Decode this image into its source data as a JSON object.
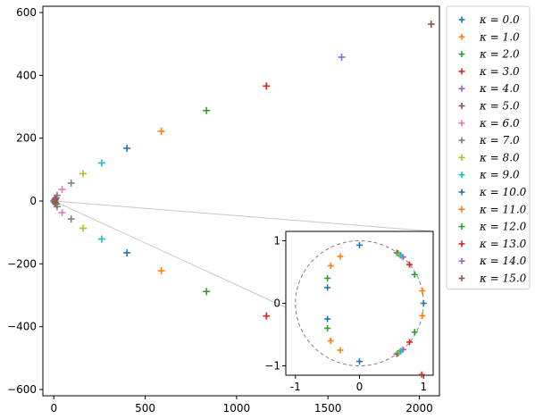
{
  "chart_data": {
    "type": "scatter",
    "marker": "plus",
    "main": {
      "xlim": [
        -60,
        2110
      ],
      "ylim": [
        -620,
        620
      ],
      "xticks": [
        0,
        500,
        1000,
        1500,
        2000
      ],
      "xtick_labels": [
        "0",
        "500",
        "1000",
        "1500",
        "2000"
      ],
      "yticks": [
        -600,
        -400,
        -200,
        0,
        200,
        400,
        600
      ],
      "ytick_labels": [
        "−600",
        "−400",
        "−200",
        "0",
        "200",
        "400",
        "600"
      ]
    },
    "inset": {
      "xlim": [
        -1.15,
        1.15
      ],
      "ylim": [
        -1.15,
        1.15
      ],
      "xticks": [
        -1,
        0,
        1
      ],
      "xtick_labels": [
        "-1",
        "0",
        "1"
      ],
      "yticks": [
        -1,
        0,
        1
      ],
      "ytick_labels": [
        "−1",
        "0",
        "1"
      ],
      "unit_circle": true
    },
    "legend": {
      "placement": "outside-right"
    },
    "series": [
      {
        "name": "κ = 0.0",
        "color": "#1f77b4",
        "points": [
          [
            0,
            0
          ]
        ],
        "inset_points": [
          [
            1.0,
            0.0
          ]
        ]
      },
      {
        "name": "κ = 1.0",
        "color": "#ff7f0e",
        "points": [
          [
            3,
            0
          ]
        ],
        "inset_points": [
          [
            0.98,
            0.2
          ],
          [
            0.98,
            -0.2
          ]
        ]
      },
      {
        "name": "κ = 2.0",
        "color": "#2ca02c",
        "points": [
          [
            5,
            3
          ],
          [
            5,
            -3
          ]
        ],
        "inset_points": [
          [
            0.86,
            0.46
          ],
          [
            0.86,
            -0.46
          ]
        ]
      },
      {
        "name": "κ = 3.0",
        "color": "#d62728",
        "points": [
          [
            7,
            5
          ],
          [
            7,
            -5
          ]
        ],
        "inset_points": [
          [
            0.78,
            0.62
          ],
          [
            0.78,
            -0.62
          ]
        ]
      },
      {
        "name": "κ = 4.0",
        "color": "#9467bd",
        "points": [
          [
            9,
            7
          ],
          [
            9,
            -7
          ]
        ],
        "inset_points": [
          [
            0.68,
            0.74
          ],
          [
            0.68,
            -0.74
          ]
        ]
      },
      {
        "name": "κ = 5.0",
        "color": "#8c564b",
        "points": [
          [
            12,
            10
          ],
          [
            12,
            -10
          ]
        ],
        "inset_points": [
          [
            0.6,
            0.8
          ],
          [
            0.6,
            -0.8
          ]
        ]
      },
      {
        "name": "κ = 6.0",
        "color": "#e377c2",
        "points": [
          [
            45,
            37
          ],
          [
            45,
            -37
          ]
        ],
        "inset_points": [
          [
            0.65,
            0.76
          ],
          [
            0.65,
            -0.76
          ]
        ]
      },
      {
        "name": "κ = 7.0",
        "color": "#7f7f7f",
        "points": [
          [
            95,
            57
          ],
          [
            95,
            -57
          ],
          [
            18,
            18
          ],
          [
            18,
            -18
          ]
        ],
        "inset_points": [
          [
            0.58,
            0.81
          ],
          [
            0.58,
            -0.81
          ]
        ]
      },
      {
        "name": "κ = 8.0",
        "color": "#bcbd22",
        "points": [
          [
            160,
            87
          ],
          [
            160,
            -87
          ]
        ],
        "inset_points": [
          [
            0.62,
            0.78
          ],
          [
            0.62,
            -0.78
          ]
        ]
      },
      {
        "name": "κ = 9.0",
        "color": "#17becf",
        "points": [
          [
            262,
            121
          ],
          [
            262,
            -121
          ]
        ],
        "inset_points": [
          [
            0.64,
            0.77
          ],
          [
            0.64,
            -0.77
          ]
        ]
      },
      {
        "name": "κ = 10.0",
        "color": "#1f77b4",
        "points": [
          [
            400,
            168
          ],
          [
            400,
            -165
          ]
        ],
        "inset_points": [
          [
            0.0,
            0.93
          ],
          [
            0.0,
            -0.93
          ],
          [
            -0.5,
            0.25
          ],
          [
            -0.5,
            -0.25
          ]
        ]
      },
      {
        "name": "κ = 11.0",
        "color": "#ff7f0e",
        "points": [
          [
            588,
            222
          ],
          [
            588,
            -222
          ]
        ],
        "inset_points": [
          [
            -0.3,
            0.75
          ],
          [
            -0.3,
            -0.75
          ],
          [
            -0.45,
            0.6
          ],
          [
            -0.45,
            -0.6
          ]
        ]
      },
      {
        "name": "κ = 12.0",
        "color": "#2ca02c",
        "points": [
          [
            835,
            288
          ],
          [
            835,
            -288
          ]
        ],
        "inset_points": [
          [
            -0.5,
            0.4
          ],
          [
            -0.5,
            -0.4
          ]
        ]
      },
      {
        "name": "κ = 13.0",
        "color": "#d62728",
        "points": [
          [
            1163,
            366
          ],
          [
            1163,
            -366
          ]
        ],
        "inset_points": [
          [
            0.97,
            -1.14
          ]
        ]
      },
      {
        "name": "κ = 14.0",
        "color": "#9467bd",
        "points": [
          [
            1575,
            458
          ]
        ],
        "inset_points": []
      },
      {
        "name": "κ = 15.0",
        "color": "#8c564b",
        "points": [
          [
            2065,
            563
          ]
        ],
        "inset_points": []
      }
    ]
  }
}
